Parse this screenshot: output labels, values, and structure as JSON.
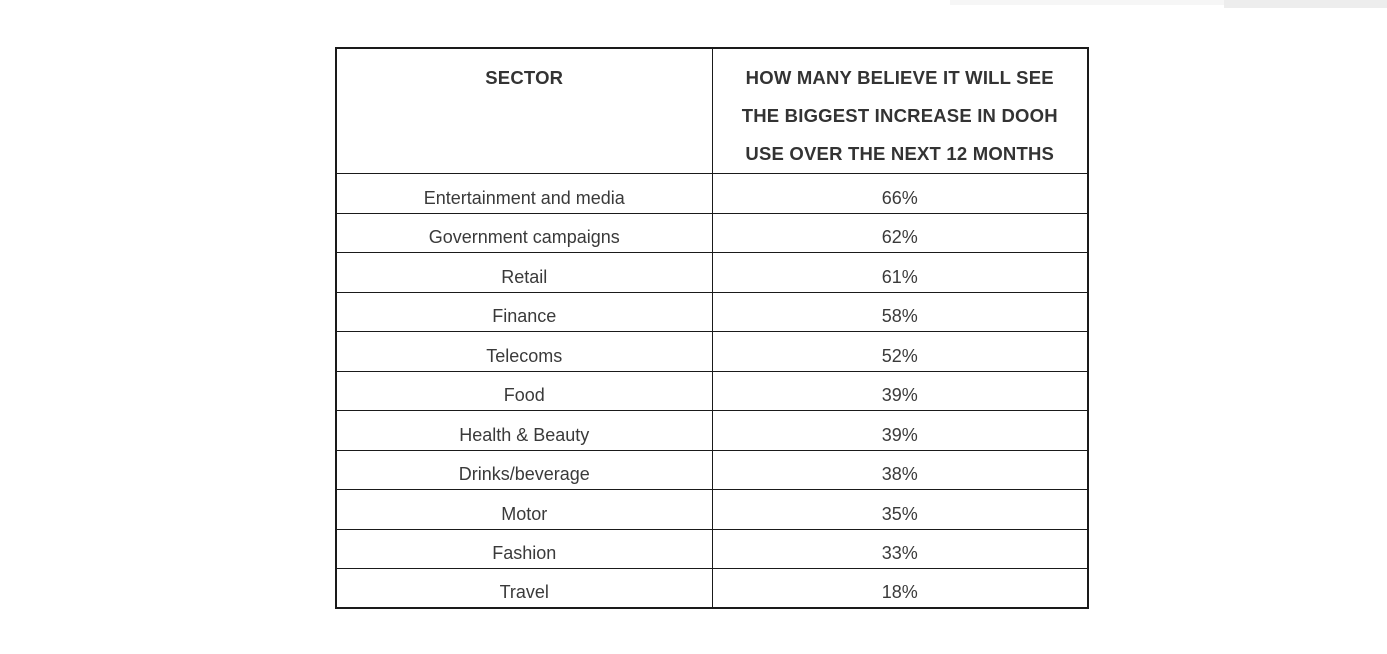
{
  "colors": {
    "border": "#1a1a1a",
    "header_text": "#333333",
    "body_text": "#3a3a3a",
    "background": "#ffffff",
    "strip_light": "#f6f6f6",
    "strip_dark": "#ededed"
  },
  "table": {
    "header": {
      "sector_label": "SECTOR",
      "value_label": "HOW MANY BELIEVE IT WILL SEE THE BIGGEST INCREASE IN DOOH USE OVER THE NEXT 12 MONTHS",
      "value_label_lines": [
        "HOW MANY BELIEVE IT WILL SEE",
        "THE BIGGEST INCREASE IN DOOH",
        "USE OVER THE NEXT 12 MONTHS"
      ]
    },
    "rows": [
      {
        "sector": "Entertainment and media",
        "value": "66%"
      },
      {
        "sector": "Government campaigns",
        "value": "62%"
      },
      {
        "sector": "Retail",
        "value": "61%"
      },
      {
        "sector": "Finance",
        "value": "58%"
      },
      {
        "sector": "Telecoms",
        "value": "52%"
      },
      {
        "sector": "Food",
        "value": "39%"
      },
      {
        "sector": "Health & Beauty",
        "value": "39%"
      },
      {
        "sector": "Drinks/beverage",
        "value": "38%"
      },
      {
        "sector": "Motor",
        "value": "35%"
      },
      {
        "sector": "Fashion",
        "value": "33%"
      },
      {
        "sector": "Travel",
        "value": "18%"
      }
    ]
  },
  "chart_data": {
    "type": "table",
    "title": "",
    "columns": [
      "SECTOR",
      "HOW MANY BELIEVE IT WILL SEE THE BIGGEST INCREASE IN DOOH USE OVER THE NEXT 12 MONTHS"
    ],
    "categories": [
      "Entertainment and media",
      "Government campaigns",
      "Retail",
      "Finance",
      "Telecoms",
      "Food",
      "Health & Beauty",
      "Drinks/beverage",
      "Motor",
      "Fashion",
      "Travel"
    ],
    "values": [
      66,
      62,
      61,
      58,
      52,
      39,
      39,
      38,
      35,
      33,
      18
    ],
    "value_unit": "%"
  }
}
